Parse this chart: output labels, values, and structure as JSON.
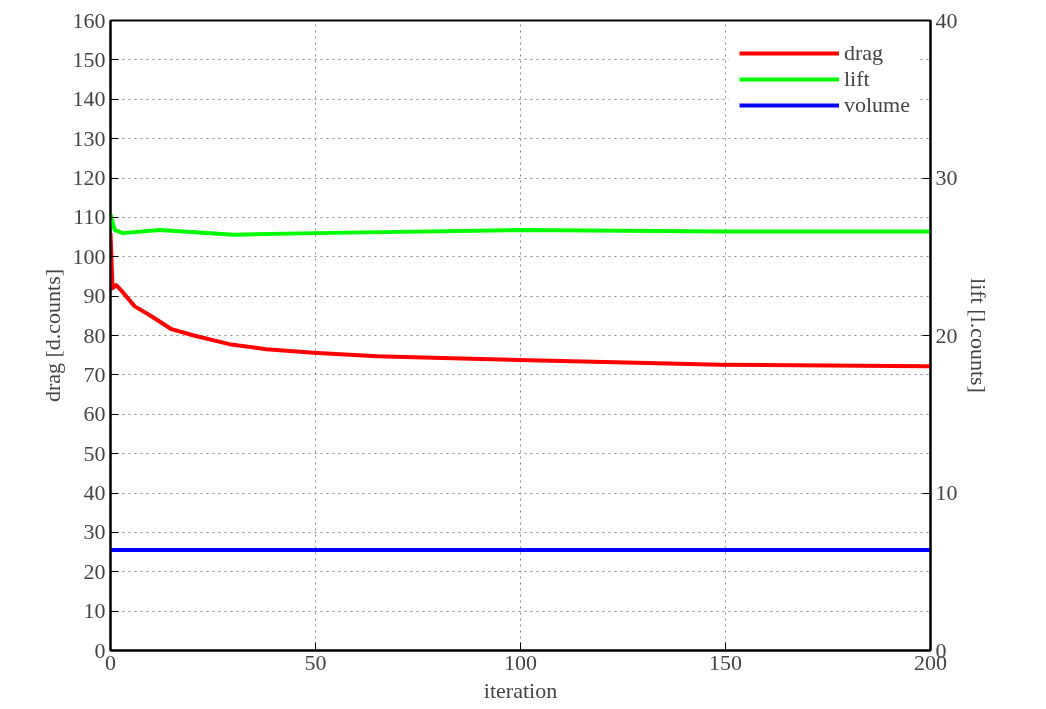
{
  "chart_data": {
    "type": "line",
    "xlabel": "iteration",
    "ylabel": "drag [d.counts]",
    "y2label": "lift [l.counts]",
    "xlim": [
      0,
      200
    ],
    "xticks": [
      0,
      50,
      100,
      150,
      200
    ],
    "ylim": [
      0,
      160
    ],
    "yticks": [
      0,
      10,
      20,
      30,
      40,
      50,
      60,
      70,
      80,
      90,
      100,
      110,
      120,
      130,
      140,
      150,
      160
    ],
    "y2lim": [
      0,
      40
    ],
    "y2ticks": [
      0,
      10,
      20,
      30,
      40
    ],
    "grid": true,
    "legend": "top right",
    "line_style": "solid",
    "marker": "none",
    "series": [
      {
        "name": "drag",
        "color": "#ff0000",
        "x": [
          0,
          0.5,
          1.4,
          3,
          5.9,
          9.5,
          14.9,
          20.3,
          29,
          38,
          49.5,
          65,
          74,
          99.6,
          149,
          199,
          200
        ],
        "values": [
          106,
          92,
          92.8,
          91,
          87.4,
          85.2,
          81.6,
          80,
          77.8,
          76.5,
          75.6,
          74.7,
          74.5,
          73.8,
          72.6,
          72.2,
          72.2
        ]
      },
      {
        "name": "lift",
        "color": "#00ff00",
        "axis": "y2",
        "x": [
          0,
          1,
          3,
          12,
          30,
          50,
          100,
          150,
          200
        ],
        "values": [
          27.7,
          26.7,
          26.5,
          26.7,
          26.4,
          26.5,
          26.7,
          26.6,
          26.6
        ]
      },
      {
        "name": "volume",
        "color": "#0000ff",
        "x": [
          0,
          200
        ],
        "values": [
          25.5,
          25.5
        ]
      }
    ]
  }
}
